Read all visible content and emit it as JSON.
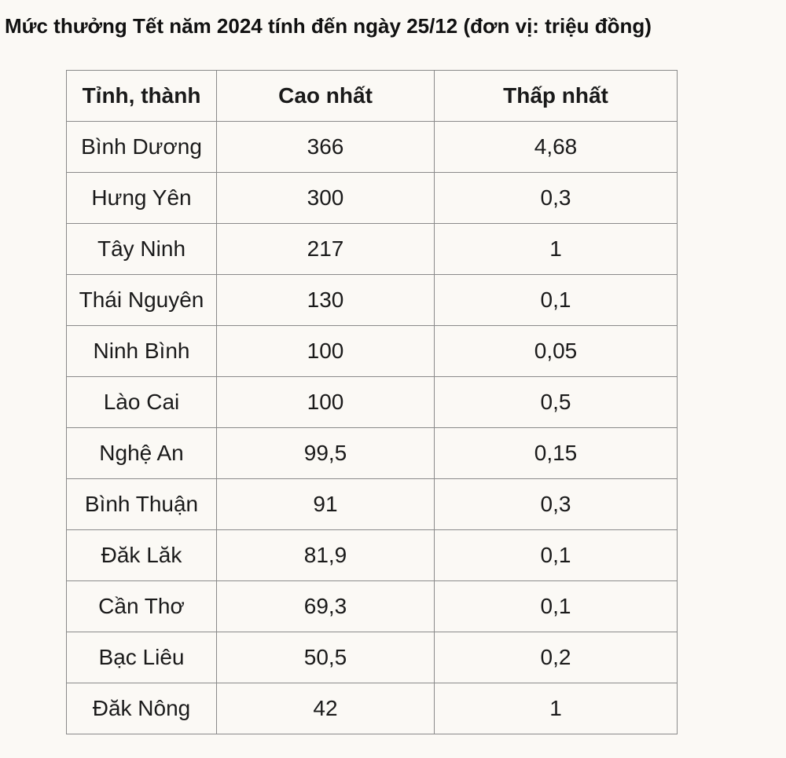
{
  "title": "Mức thưởng Tết năm 2024 tính đến ngày 25/12 (đơn vị: triệu đồng)",
  "table": {
    "headers": [
      "Tỉnh, thành",
      "Cao nhất",
      "Thấp nhất"
    ],
    "rows": [
      [
        "Bình Dương",
        "366",
        "4,68"
      ],
      [
        "Hưng Yên",
        "300",
        "0,3"
      ],
      [
        "Tây Ninh",
        "217",
        "1"
      ],
      [
        "Thái Nguyên",
        "130",
        "0,1"
      ],
      [
        "Ninh Bình",
        "100",
        "0,05"
      ],
      [
        "Lào Cai",
        "100",
        "0,5"
      ],
      [
        "Nghệ An",
        "99,5",
        "0,15"
      ],
      [
        "Bình Thuận",
        "91",
        "0,3"
      ],
      [
        "Đăk Lăk",
        "81,9",
        "0,1"
      ],
      [
        "Cần Thơ",
        "69,3",
        "0,1"
      ],
      [
        "Bạc Liêu",
        "50,5",
        "0,2"
      ],
      [
        "Đăk Nông",
        "42",
        "1"
      ]
    ]
  }
}
